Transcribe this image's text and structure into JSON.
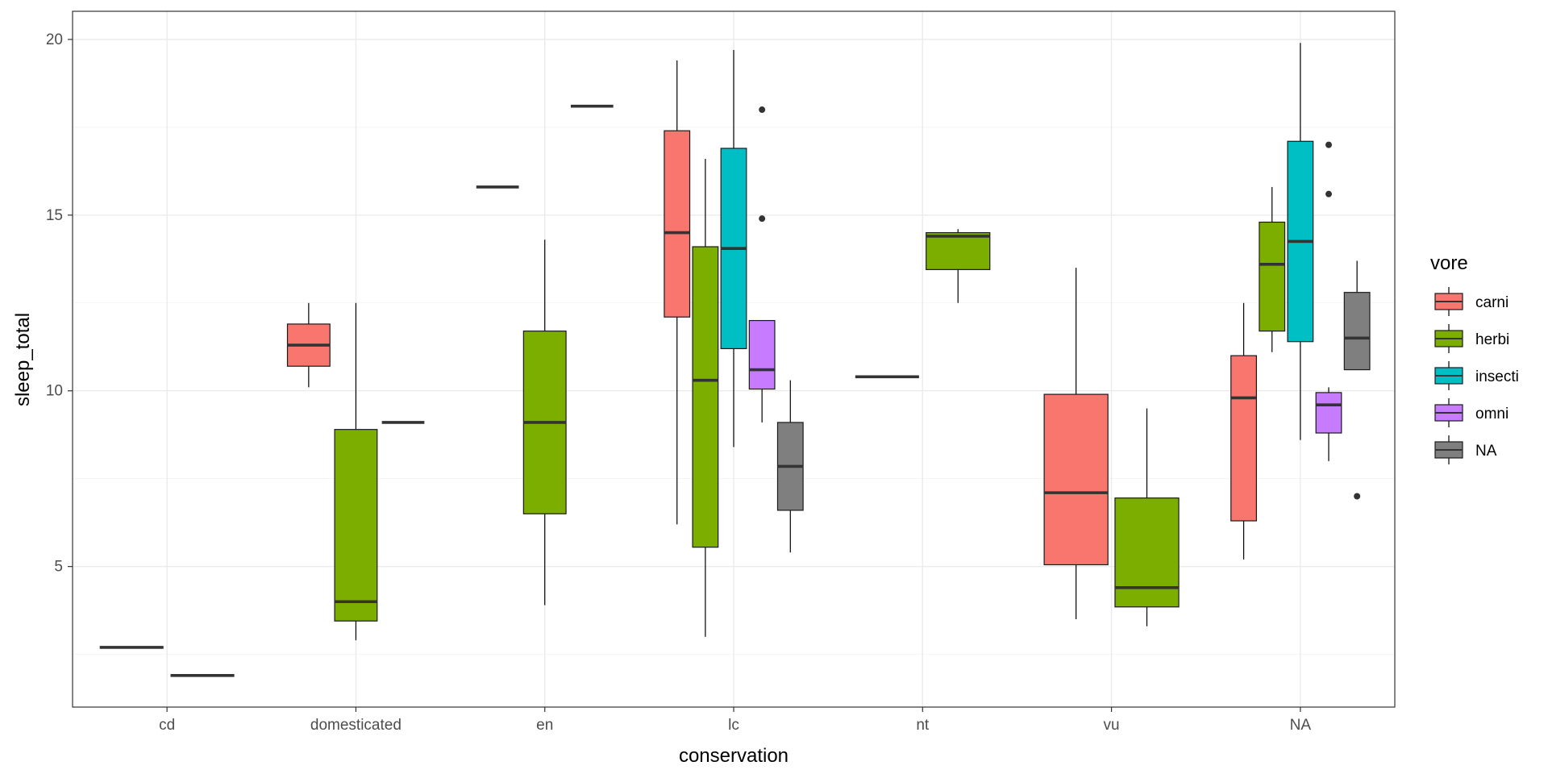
{
  "chart_data": {
    "type": "boxplot",
    "xlabel": "conservation",
    "ylabel": "sleep_total",
    "ylim": [
      1.0,
      20.8
    ],
    "yticks": [
      5,
      10,
      15,
      20
    ],
    "categories": [
      "cd",
      "domesticated",
      "en",
      "lc",
      "nt",
      "vu",
      "NA"
    ],
    "legend": {
      "title": "vore",
      "placement": "right",
      "entries": [
        {
          "name": "carni",
          "color": "#F8766D"
        },
        {
          "name": "herbi",
          "color": "#7CAE00"
        },
        {
          "name": "insecti",
          "color": "#00BFC4"
        },
        {
          "name": "omni",
          "color": "#C77CFF"
        },
        {
          "name": "NA",
          "color": "#7F7F7F"
        }
      ]
    },
    "groups": [
      {
        "category": "cd",
        "vores": [
          "carni",
          "herbi"
        ],
        "boxes": [
          {
            "vore": "carni",
            "min": 2.7,
            "q1": 2.7,
            "median": 2.7,
            "q3": 2.7,
            "max": 2.7,
            "outliers": []
          },
          {
            "vore": "herbi",
            "min": 1.9,
            "q1": 1.9,
            "median": 1.9,
            "q3": 1.9,
            "max": 1.9,
            "outliers": []
          }
        ]
      },
      {
        "category": "domesticated",
        "vores": [
          "carni",
          "herbi",
          "omni"
        ],
        "boxes": [
          {
            "vore": "carni",
            "min": 10.1,
            "q1": 10.7,
            "median": 11.3,
            "q3": 11.9,
            "max": 12.5,
            "outliers": []
          },
          {
            "vore": "herbi",
            "min": 2.9,
            "q1": 3.45,
            "median": 4.0,
            "q3": 8.9,
            "max": 12.5,
            "outliers": []
          },
          {
            "vore": "omni",
            "min": 9.1,
            "q1": 9.1,
            "median": 9.1,
            "q3": 9.1,
            "max": 9.1,
            "outliers": []
          }
        ]
      },
      {
        "category": "en",
        "vores": [
          "carni",
          "herbi",
          "insecti"
        ],
        "boxes": [
          {
            "vore": "carni",
            "min": 15.8,
            "q1": 15.8,
            "median": 15.8,
            "q3": 15.8,
            "max": 15.8,
            "outliers": []
          },
          {
            "vore": "herbi",
            "min": 3.9,
            "q1": 6.5,
            "median": 9.1,
            "q3": 11.7,
            "max": 14.3,
            "outliers": []
          },
          {
            "vore": "insecti",
            "min": 18.1,
            "q1": 18.1,
            "median": 18.1,
            "q3": 18.1,
            "max": 18.1,
            "outliers": []
          }
        ]
      },
      {
        "category": "lc",
        "vores": [
          "carni",
          "herbi",
          "insecti",
          "omni",
          "NA"
        ],
        "boxes": [
          {
            "vore": "carni",
            "min": 6.2,
            "q1": 12.1,
            "median": 14.5,
            "q3": 17.4,
            "max": 19.4,
            "outliers": []
          },
          {
            "vore": "herbi",
            "min": 3.0,
            "q1": 5.55,
            "median": 10.3,
            "q3": 14.1,
            "max": 16.6,
            "outliers": []
          },
          {
            "vore": "insecti",
            "min": 8.4,
            "q1": 11.2,
            "median": 14.05,
            "q3": 16.9,
            "max": 19.7,
            "outliers": []
          },
          {
            "vore": "omni",
            "min": 9.1,
            "q1": 10.05,
            "median": 10.6,
            "q3": 12.0,
            "max": 12.0,
            "outliers": [
              14.9,
              18.0
            ]
          },
          {
            "vore": "NA",
            "min": 5.4,
            "q1": 6.6,
            "median": 7.85,
            "q3": 9.1,
            "max": 10.3,
            "outliers": []
          }
        ]
      },
      {
        "category": "nt",
        "vores": [
          "carni",
          "herbi"
        ],
        "boxes": [
          {
            "vore": "carni",
            "min": 10.4,
            "q1": 10.4,
            "median": 10.4,
            "q3": 10.4,
            "max": 10.4,
            "outliers": []
          },
          {
            "vore": "herbi",
            "min": 12.5,
            "q1": 13.45,
            "median": 14.4,
            "q3": 14.5,
            "max": 14.6,
            "outliers": []
          }
        ]
      },
      {
        "category": "vu",
        "vores": [
          "carni",
          "herbi"
        ],
        "boxes": [
          {
            "vore": "carni",
            "min": 3.5,
            "q1": 5.05,
            "median": 7.1,
            "q3": 9.9,
            "max": 13.5,
            "outliers": []
          },
          {
            "vore": "herbi",
            "min": 3.3,
            "q1": 3.85,
            "median": 4.4,
            "q3": 6.95,
            "max": 9.5,
            "outliers": []
          }
        ]
      },
      {
        "category": "NA",
        "vores": [
          "carni",
          "herbi",
          "insecti",
          "omni",
          "NA"
        ],
        "boxes": [
          {
            "vore": "carni",
            "min": 5.2,
            "q1": 6.3,
            "median": 9.8,
            "q3": 11.0,
            "max": 12.5,
            "outliers": []
          },
          {
            "vore": "herbi",
            "min": 11.1,
            "q1": 11.7,
            "median": 13.6,
            "q3": 14.8,
            "max": 15.8,
            "outliers": []
          },
          {
            "vore": "insecti",
            "min": 8.6,
            "q1": 11.4,
            "median": 14.25,
            "q3": 17.1,
            "max": 19.9,
            "outliers": []
          },
          {
            "vore": "omni",
            "min": 8.0,
            "q1": 8.8,
            "median": 9.6,
            "q3": 9.95,
            "max": 10.1,
            "outliers": [
              15.6,
              17.0
            ]
          },
          {
            "vore": "NA",
            "min": 10.6,
            "q1": 10.6,
            "median": 11.5,
            "q3": 12.8,
            "max": 13.7,
            "outliers": [
              7.0
            ]
          }
        ]
      }
    ]
  }
}
